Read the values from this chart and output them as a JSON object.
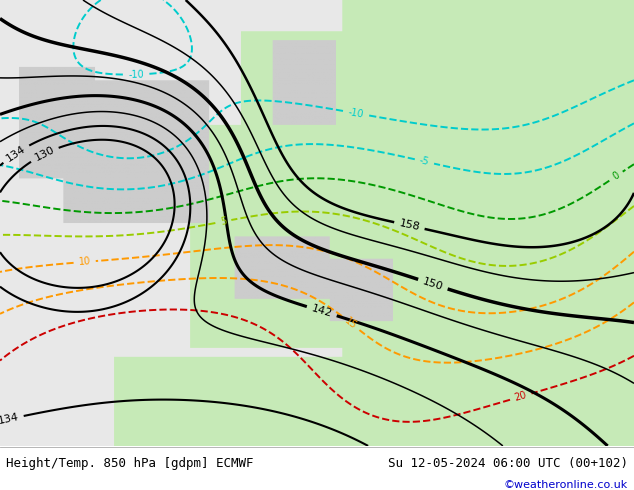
{
  "title_left": "Height/Temp. 850 hPa [gdpm] ECMWF",
  "title_right": "Su 12-05-2024 06:00 UTC (00+102)",
  "credit": "©weatheronline.co.uk",
  "map_bg_sea": [
    0.91,
    0.91,
    0.91
  ],
  "map_bg_green": [
    0.78,
    0.92,
    0.72
  ],
  "map_bg_gray": [
    0.8,
    0.8,
    0.8
  ],
  "title_fontsize": 9,
  "credit_color": "#0000cc",
  "temp_colors": {
    "-10": "#00cccc",
    "-5": "#00cccc",
    "0": "#009900",
    "5": "#99cc00",
    "10": "#ff9900",
    "15": "#ff9900",
    "20": "#cc0000"
  },
  "height_bold_levels": [
    130,
    134,
    142,
    150,
    158
  ],
  "height_lw_map": {
    "130": 1.5,
    "134": 1.5,
    "138": 1.1,
    "142": 2.2,
    "146": 1.1,
    "150": 2.5,
    "154": 1.1,
    "158": 1.8
  }
}
